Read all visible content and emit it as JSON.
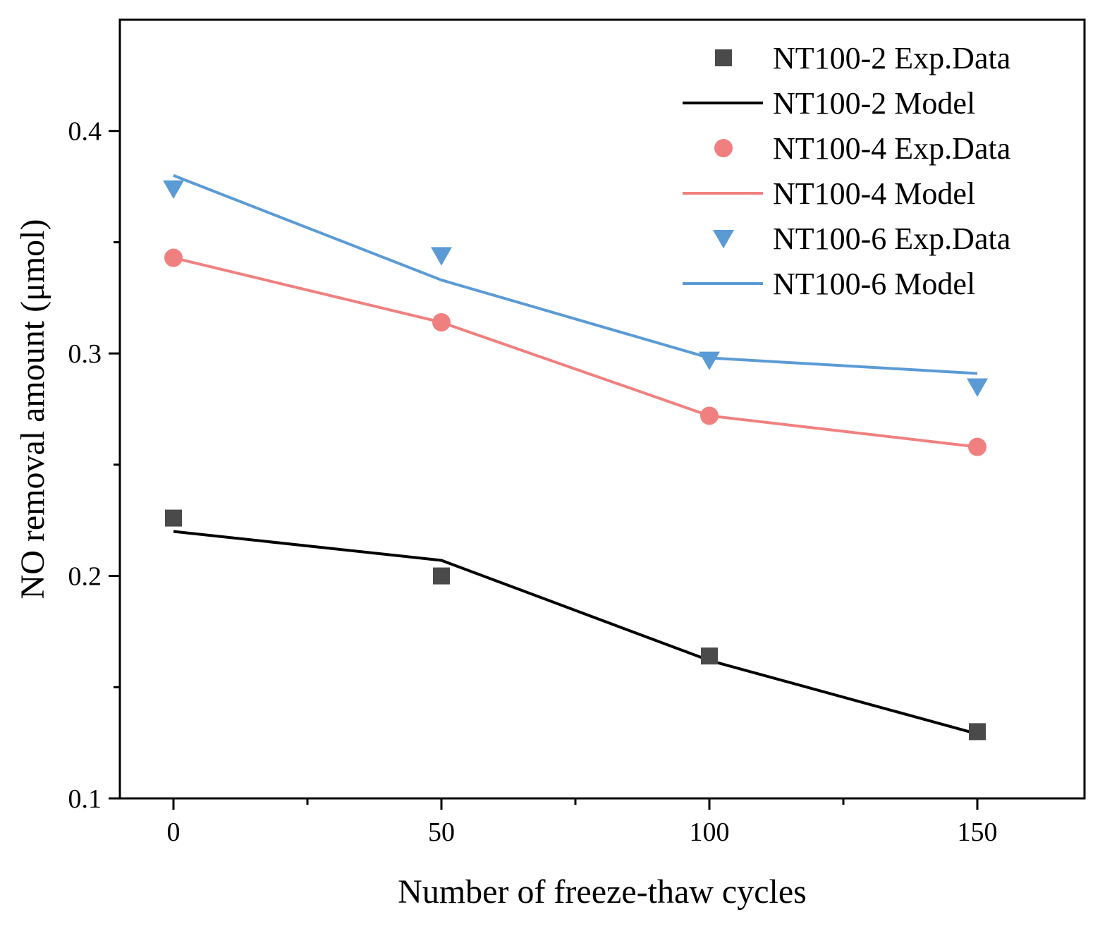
{
  "chart_data": {
    "type": "line",
    "title": "",
    "xlabel": "Number of freeze-thaw cycles",
    "ylabel": "NO removal amount (μmol)",
    "xlim": [
      -10,
      170
    ],
    "ylim": [
      0.1,
      0.45
    ],
    "x_ticks": [
      0,
      50,
      100,
      150
    ],
    "x_tick_labels": [
      "0",
      "50",
      "100",
      "150"
    ],
    "x_minor_ticks": [
      25,
      75,
      125
    ],
    "y_ticks": [
      0.1,
      0.2,
      0.3,
      0.4
    ],
    "y_tick_labels": [
      "0.1",
      "0.2",
      "0.3",
      "0.4"
    ],
    "y_minor_ticks": [
      0.15,
      0.25,
      0.35
    ],
    "grid": false,
    "legend_position": "top-right",
    "x": [
      0,
      50,
      100,
      150
    ],
    "series": [
      {
        "name": "NT100-2 Exp.Data",
        "kind": "scatter",
        "marker": "square",
        "color": "#4a4a4a",
        "values": [
          0.226,
          0.2,
          0.164,
          0.13
        ]
      },
      {
        "name": "NT100-2 Model",
        "kind": "line",
        "color": "#000000",
        "values": [
          0.22,
          0.207,
          0.162,
          0.129
        ]
      },
      {
        "name": "NT100-4 Exp.Data",
        "kind": "scatter",
        "marker": "circle",
        "color": "#f08080",
        "values": [
          0.343,
          0.314,
          0.272,
          0.258
        ]
      },
      {
        "name": "NT100-4 Model",
        "kind": "line",
        "color": "#f08080",
        "values": [
          0.343,
          0.314,
          0.272,
          0.258
        ]
      },
      {
        "name": "NT100-6 Exp.Data",
        "kind": "scatter",
        "marker": "triangle-down",
        "color": "#5b9bd5",
        "values": [
          0.374,
          0.344,
          0.297,
          0.285
        ]
      },
      {
        "name": "NT100-6 Model",
        "kind": "line",
        "color": "#5b9bd5",
        "values": [
          0.38,
          0.333,
          0.298,
          0.291
        ]
      }
    ]
  }
}
